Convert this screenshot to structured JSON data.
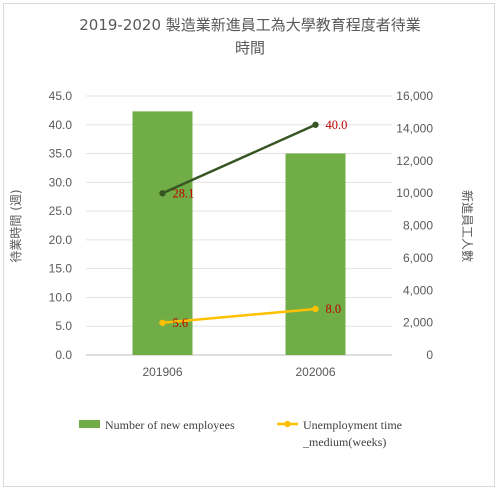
{
  "chart_data": {
    "type": "bar+line",
    "title_line1": "2019-2020 製造業新進員工為大學教育程度者待業",
    "title_line2": "時間",
    "categories": [
      "201906",
      "202006"
    ],
    "y_left_label": "待業時間 (週)",
    "y_right_label": "新進員工人數",
    "y_left_ticks": [
      "0.0",
      "5.0",
      "10.0",
      "15.0",
      "20.0",
      "25.0",
      "30.0",
      "35.0",
      "40.0",
      "45.0"
    ],
    "y_right_ticks": [
      "0",
      "2,000",
      "4,000",
      "6,000",
      "8,000",
      "10,000",
      "12,000",
      "14,000",
      "16,000"
    ],
    "y_left_range": [
      0,
      45
    ],
    "y_right_range": [
      0,
      16000
    ],
    "bar_series": {
      "name": "Number of new employees",
      "axis": "right",
      "values": [
        15050,
        12450
      ],
      "color": "#70ad47"
    },
    "line_series": [
      {
        "name": "",
        "axis": "left",
        "values": [
          28.1,
          40.0
        ],
        "labels": [
          "28.1",
          "40.0"
        ],
        "color": "#375623"
      },
      {
        "name": "Unemployment time _medium(weeks)",
        "axis": "left",
        "values": [
          5.6,
          8.0
        ],
        "labels": [
          "5.6",
          "8.0"
        ],
        "color": "#ffc000"
      }
    ],
    "legend": {
      "position": "bottom",
      "bar_label": "Number of new employees",
      "line_label_1": "Unemployment time",
      "line_label_2": "_medium(weeks)"
    },
    "grid": true
  }
}
